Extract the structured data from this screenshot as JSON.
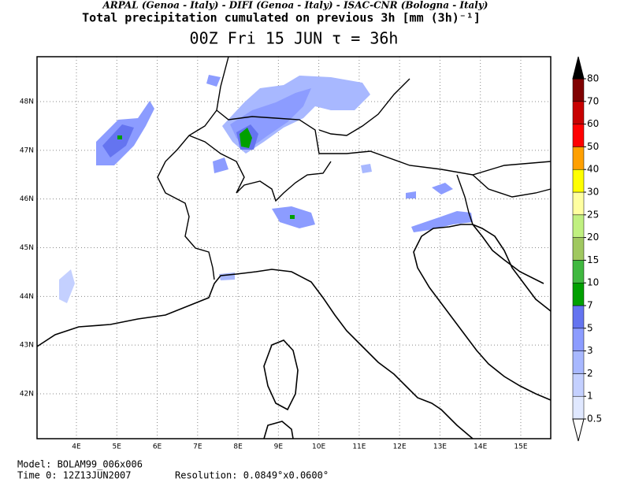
{
  "header": "ARPAL (Genoa - Italy)  -  DIFI (Genoa - Italy)  -  ISAC-CNR (Bologna - Italy)",
  "title": "Total precipitation cumulated on previous 3h [mm (3h)⁻¹]",
  "subtitle": "00Z Fri 15 JUN  τ = 36h",
  "map": {
    "lon_ticks": [
      {
        "value": 4,
        "label": "4E"
      },
      {
        "value": 5,
        "label": "5E"
      },
      {
        "value": 6,
        "label": "6E"
      },
      {
        "value": 7,
        "label": "7E"
      },
      {
        "value": 8,
        "label": "8E"
      },
      {
        "value": 9,
        "label": "9E"
      },
      {
        "value": 10,
        "label": "10E"
      },
      {
        "value": 11,
        "label": "11E"
      },
      {
        "value": 12,
        "label": "12E"
      },
      {
        "value": 13,
        "label": "13E"
      },
      {
        "value": 14,
        "label": "14E"
      },
      {
        "value": 15,
        "label": "15E"
      }
    ],
    "lat_ticks": [
      {
        "value": 42,
        "label": "42N"
      },
      {
        "value": 43,
        "label": "43N"
      },
      {
        "value": 44,
        "label": "44N"
      },
      {
        "value": 45,
        "label": "45N"
      },
      {
        "value": 46,
        "label": "46N"
      },
      {
        "value": 47,
        "label": "47N"
      },
      {
        "value": 48,
        "label": "48N"
      }
    ]
  },
  "colorbar": {
    "levels": [
      0.5,
      1,
      2,
      3,
      5,
      7,
      10,
      15,
      20,
      25,
      30,
      40,
      50,
      60,
      70,
      80
    ],
    "colors": [
      "#e0e8ff",
      "#c4d0ff",
      "#a8b8ff",
      "#8c9cff",
      "#6474f0",
      "#00a000",
      "#40b840",
      "#a0c860",
      "#c0f080",
      "#ffffa0",
      "#ffff00",
      "#ffa000",
      "#ff0000",
      "#c80000",
      "#800000"
    ],
    "over_color": "#000000"
  },
  "footer": {
    "model": "Model: BOLAM99_006x006",
    "time": "Time 0: 12Z13JUN2007",
    "resolution": "Resolution: 0.0849°x0.0600°"
  }
}
